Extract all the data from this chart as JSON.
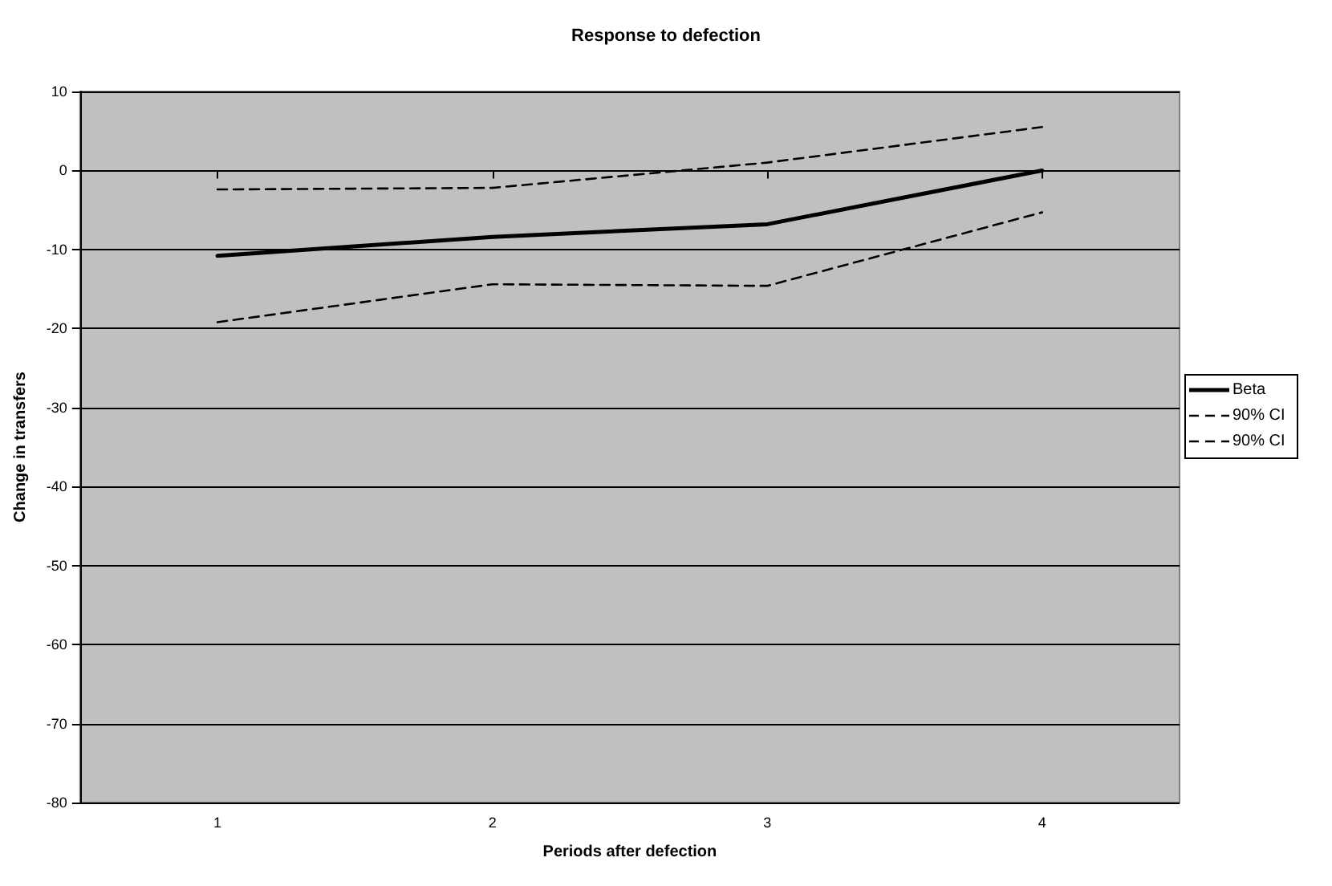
{
  "chart_data": {
    "type": "line",
    "title": "Response to defection",
    "xlabel": "Periods after defection",
    "ylabel": "Change in transfers",
    "categories": [
      "1",
      "2",
      "3",
      "4"
    ],
    "series": [
      {
        "name": "Beta",
        "color": "#000000",
        "line_style": "solid",
        "values": [
          -10.8,
          -8.4,
          -6.8,
          0
        ]
      },
      {
        "name": "90% CI",
        "color": "#000000",
        "line_style": "dashed",
        "values": [
          -2.4,
          -2.2,
          1.0,
          5.5
        ]
      },
      {
        "name": "90% CI",
        "color": "#000000",
        "line_style": "dashed",
        "values": [
          -19.2,
          -14.4,
          -14.6,
          -5.3
        ]
      }
    ],
    "ylim": [
      -80,
      10
    ],
    "yticks": [
      -80,
      -70,
      -60,
      -50,
      -40,
      -30,
      -20,
      -10,
      0,
      10
    ],
    "grid": "y",
    "legend": "right",
    "marker": "none"
  }
}
